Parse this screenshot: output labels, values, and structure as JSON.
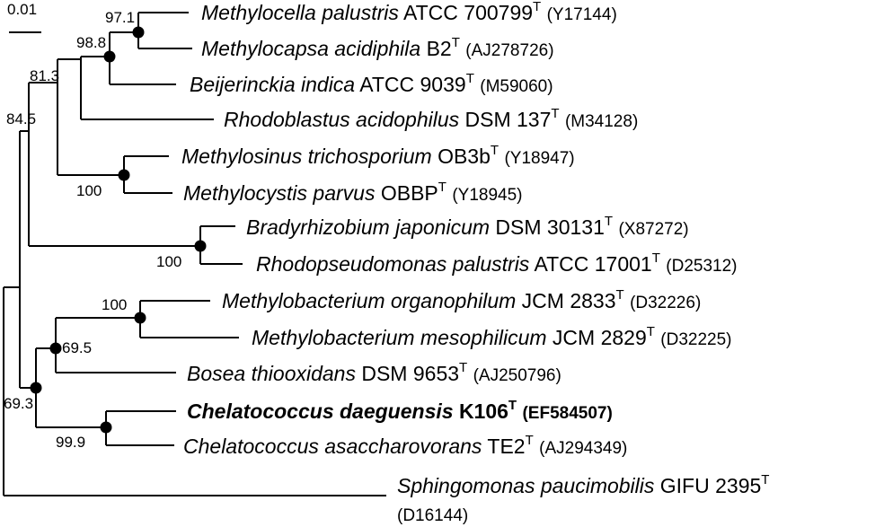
{
  "scale_bar": {
    "label": "0.01"
  },
  "taxa": [
    {
      "genus_species": "Methylocella palustris",
      "strain": "ATCC 700799",
      "type_mark": "T",
      "accession": "(Y17144)"
    },
    {
      "genus_species": "Methylocapsa acidiphila",
      "strain": "B2",
      "type_mark": "T",
      "accession": "(AJ278726)"
    },
    {
      "genus_species": "Beijerinckia indica",
      "strain": "ATCC 9039",
      "type_mark": "T",
      "accession": "(M59060)"
    },
    {
      "genus_species": "Rhodoblastus acidophilus",
      "strain": "DSM 137",
      "type_mark": "T",
      "accession": "(M34128)"
    },
    {
      "genus_species": "Methylosinus trichosporium",
      "strain": "OB3b",
      "type_mark": "T",
      "accession": "(Y18947)"
    },
    {
      "genus_species": "Methylocystis parvus",
      "strain": "OBBP",
      "type_mark": "T",
      "accession": "(Y18945)"
    },
    {
      "genus_species": "Bradyrhizobium japonicum",
      "strain": "DSM 30131",
      "type_mark": "T",
      "accession": "(X87272)"
    },
    {
      "genus_species": "Rhodopseudomonas palustris",
      "strain": "ATCC 17001",
      "type_mark": "T",
      "accession": "(D25312)"
    },
    {
      "genus_species": "Methylobacterium organophilum",
      "strain": "JCM 2833",
      "type_mark": "T",
      "accession": "(D32226)"
    },
    {
      "genus_species": "Methylobacterium mesophilicum",
      "strain": "JCM 2829",
      "type_mark": "T",
      "accession": "(D32225)"
    },
    {
      "genus_species": "Bosea thiooxidans",
      "strain": "DSM 9653",
      "type_mark": "T",
      "accession": "(AJ250796)"
    },
    {
      "genus_species": "Chelatococcus daeguensis",
      "strain": "K106",
      "type_mark": "T",
      "accession": "(EF584507)",
      "highlight": true
    },
    {
      "genus_species": "Chelatococcus asaccharovorans",
      "strain": "TE2",
      "type_mark": "T",
      "accession": "(AJ294349)"
    },
    {
      "genus_species": "Sphingomonas paucimobilis",
      "strain": "GIFU 2395",
      "type_mark": "T",
      "accession": "(D16144)"
    }
  ],
  "bootstrap": {
    "n_97_1": "97.1",
    "n_98_8": "98.8",
    "n_81_3": "81.3",
    "n_84_5": "84.5",
    "n_100_a": "100",
    "n_100_b": "100",
    "n_100_c": "100",
    "n_69_5": "69.5",
    "n_69_3": "69.3",
    "n_99_9": "99.9"
  }
}
